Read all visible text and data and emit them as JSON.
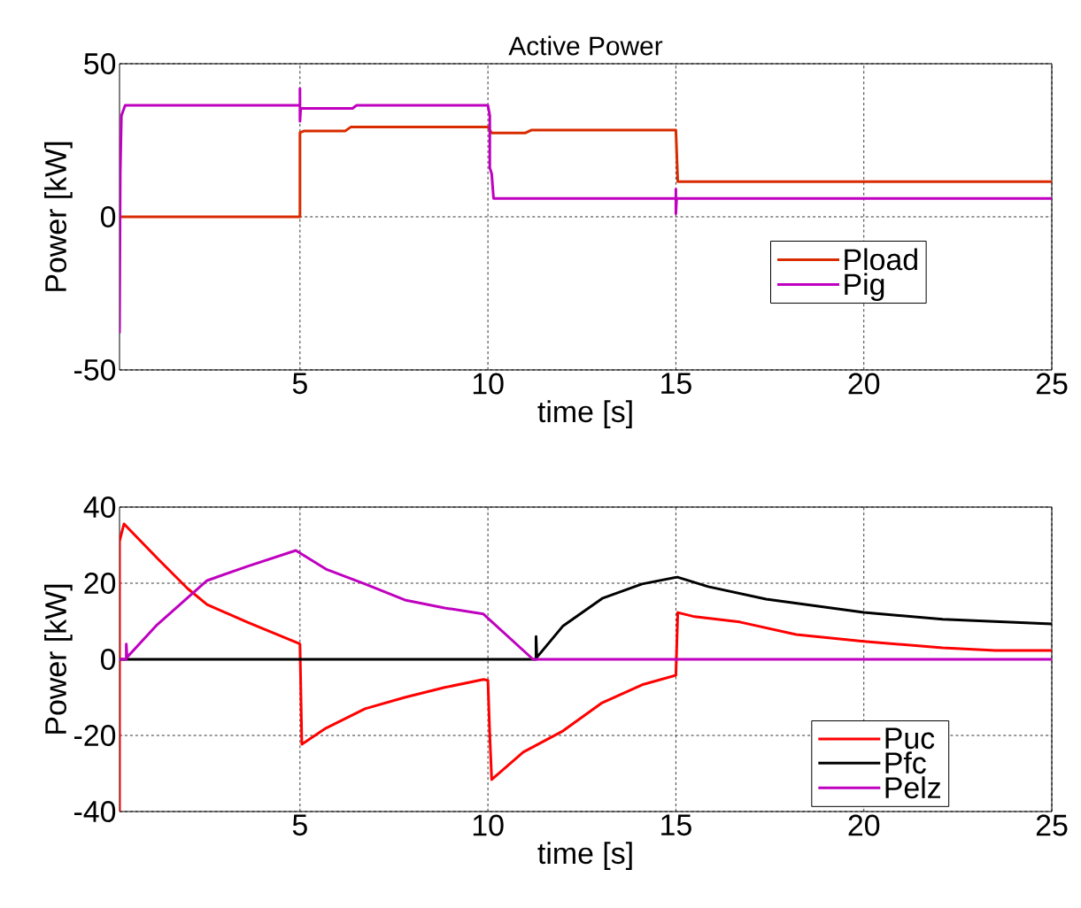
{
  "chart_data": [
    {
      "type": "line",
      "title": "Active Power",
      "xlabel": "time [s]",
      "ylabel": "Power [kW]",
      "xlim": [
        0.2,
        25
      ],
      "ylim": [
        -50,
        50
      ],
      "xticks": [
        5,
        10,
        15,
        20,
        25
      ],
      "yticks": [
        -50,
        0,
        50
      ],
      "grid": true,
      "legend": "right",
      "series": [
        {
          "name": "Pload",
          "color": "#d92b00",
          "x": [
            0.2,
            5,
            5,
            5.1,
            6.2,
            6.35,
            10,
            10.1,
            11.0,
            11.15,
            15,
            15.05,
            25
          ],
          "values": [
            0,
            0,
            27.5,
            28,
            28,
            29.3,
            29.3,
            27.4,
            27.4,
            28.3,
            28.3,
            11.5,
            11.5
          ]
        },
        {
          "name": "Pig",
          "color": "#c000c0",
          "x": [
            0.2,
            0.22,
            0.25,
            0.35,
            5,
            5,
            5,
            5.02,
            6.4,
            6.5,
            10,
            10.05,
            10.05,
            10.1,
            10.15,
            15,
            15,
            15,
            15.02,
            25
          ],
          "values": [
            -38,
            14,
            33,
            36.4,
            36.4,
            41.9,
            31.2,
            35.4,
            35.4,
            36.4,
            36.4,
            33,
            16,
            14,
            6,
            6,
            9,
            1,
            6,
            6
          ]
        }
      ]
    },
    {
      "type": "line",
      "xlabel": "time [s]",
      "ylabel": "Power [kW]",
      "xlim": [
        0.2,
        25
      ],
      "ylim": [
        -40,
        40
      ],
      "xticks": [
        5,
        10,
        15,
        20,
        25
      ],
      "yticks": [
        -40,
        -20,
        0,
        20,
        40
      ],
      "grid": true,
      "legend": "bottom right",
      "series": [
        {
          "name": "Puc",
          "color": "#ff0000",
          "x": [
            0.2,
            0.2,
            0.25,
            0.32,
            1.21,
            2.01,
            2.53,
            3.59,
            4.96,
            5.0,
            5.05,
            5.69,
            6.73,
            7.79,
            8.85,
            9.88,
            10.0,
            10.05,
            10.1,
            10.94,
            12.0,
            13.04,
            14.1,
            15.0,
            15.05,
            15.5,
            16.7,
            18.2,
            20.0,
            22.1,
            23.5,
            25
          ],
          "values": [
            -40,
            31,
            33,
            35.6,
            26.5,
            18.6,
            14.4,
            9.8,
            4.2,
            4.0,
            -22.3,
            -18.1,
            -13,
            -10,
            -7.4,
            -5.3,
            -5.5,
            -20,
            -31.6,
            -24.4,
            -18.8,
            -11.4,
            -6.7,
            -4.2,
            12.3,
            11.2,
            9.8,
            6.5,
            4.7,
            3.0,
            2.3,
            2.3
          ]
        },
        {
          "name": "Pfc",
          "color": "#000000",
          "x": [
            0.2,
            11.28,
            11.28,
            11.3,
            12.0,
            13.04,
            14.1,
            15.04,
            15.86,
            17.4,
            20.0,
            22.1,
            25
          ],
          "values": [
            0,
            0,
            6,
            0.5,
            8.8,
            16,
            19.8,
            21.6,
            19.1,
            15.8,
            12.3,
            10.5,
            9.3
          ]
        },
        {
          "name": "Pelz",
          "color": "#bf00bf",
          "x": [
            0.2,
            0.38,
            0.38,
            0.4,
            1.17,
            2.53,
            3.59,
            4.89,
            5.69,
            6.73,
            7.79,
            8.85,
            9.88,
            11.2,
            25
          ],
          "values": [
            0,
            0,
            4,
            0.5,
            8.8,
            20.7,
            24.4,
            28.6,
            23.7,
            19.8,
            15.6,
            13.5,
            11.9,
            0,
            0
          ]
        }
      ]
    }
  ]
}
